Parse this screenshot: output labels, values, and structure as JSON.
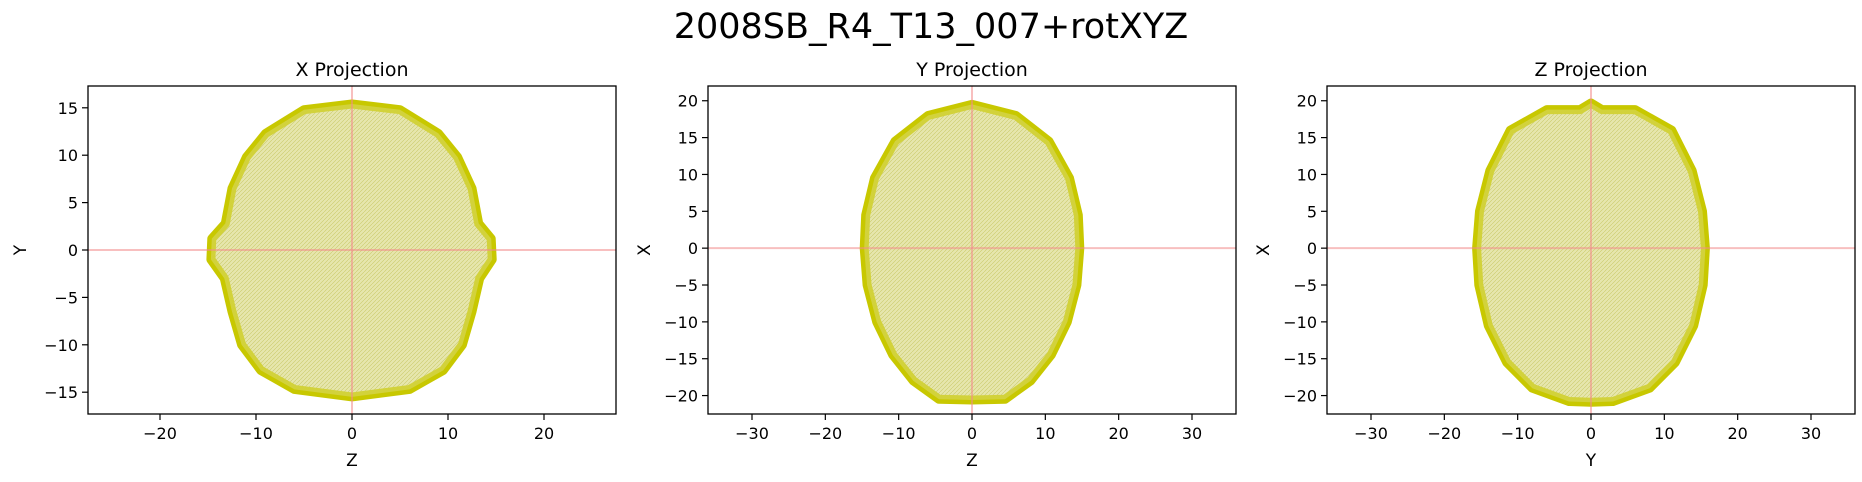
{
  "figure": {
    "suptitle": "2008SB_R4_T13_007+rotXYZ",
    "colors": {
      "shape": "#c8c800",
      "shape_fill": "#e4e4a8",
      "crosshair": "#f28b8b",
      "axes": "#000000"
    }
  },
  "chart_data": [
    {
      "type": "area",
      "title": "X Projection",
      "xlabel": "Z",
      "ylabel": "Y",
      "xlim": [
        -27.5,
        27.5
      ],
      "ylim": [
        -17.3,
        17.3
      ],
      "xticks": [
        -20,
        -10,
        0,
        10,
        20
      ],
      "yticks": [
        -15,
        -10,
        -5,
        0,
        5,
        10,
        15
      ],
      "grid": false,
      "crosshair": [
        0,
        0
      ],
      "series": [
        {
          "x": [
            0,
            5,
            9,
            11,
            12.5,
            13.2,
            14.5,
            14.6,
            13.3,
            12.5,
            11.5,
            9.5,
            6,
            0,
            -6,
            -9.5,
            -11.5,
            -12.5,
            -13.3,
            -14.7,
            -14.6,
            -13.2,
            -12.5,
            -11,
            -9,
            -5,
            0
          ],
          "y": [
            15.4,
            14.8,
            12.3,
            9.8,
            6.5,
            2.8,
            1.2,
            -1,
            -3,
            -6.5,
            -10,
            -12.7,
            -14.7,
            -15.5,
            -14.7,
            -12.7,
            -10,
            -6.5,
            -3,
            -1,
            1.2,
            2.8,
            6.5,
            9.8,
            12.3,
            14.8,
            15.4
          ]
        }
      ]
    },
    {
      "type": "area",
      "title": "Y Projection",
      "xlabel": "Z",
      "ylabel": "X",
      "xlim": [
        -36,
        36
      ],
      "ylim": [
        -22.5,
        22
      ],
      "xticks": [
        -30,
        -20,
        -10,
        0,
        10,
        20,
        30
      ],
      "yticks": [
        -20,
        -15,
        -10,
        -5,
        0,
        5,
        10,
        15,
        20
      ],
      "grid": false,
      "crosshair": [
        0,
        0
      ],
      "series": [
        {
          "x": [
            0,
            6,
            10.5,
            13.3,
            14.5,
            14.7,
            14.3,
            13,
            10.8,
            8,
            4.5,
            0,
            -4.5,
            -8,
            -10.8,
            -13,
            -14.3,
            -14.7,
            -14.5,
            -13.3,
            -10.5,
            -6,
            0
          ],
          "y": [
            19.5,
            18,
            14.5,
            9.5,
            4.5,
            0,
            -5,
            -10,
            -14.5,
            -18,
            -20.5,
            -20.6,
            -20.5,
            -18,
            -14.5,
            -10,
            -5,
            0,
            4.5,
            9.5,
            14.5,
            18,
            19.5
          ]
        }
      ]
    },
    {
      "type": "area",
      "title": "Z Projection",
      "xlabel": "Y",
      "ylabel": "X",
      "xlim": [
        -36,
        36
      ],
      "ylim": [
        -22.5,
        22
      ],
      "xticks": [
        -30,
        -20,
        -10,
        0,
        10,
        20,
        30
      ],
      "yticks": [
        -20,
        -15,
        -10,
        -5,
        0,
        5,
        10,
        15,
        20
      ],
      "grid": false,
      "crosshair": [
        0,
        0
      ],
      "series": [
        {
          "x": [
            0,
            1.5,
            6,
            11,
            13.8,
            15.2,
            15.6,
            15.3,
            14,
            11.5,
            8,
            3,
            0,
            -3,
            -8,
            -11.5,
            -14,
            -15.3,
            -15.6,
            -15.2,
            -13.8,
            -11,
            -6,
            -1.5,
            0
          ],
          "y": [
            19.7,
            18.8,
            18.8,
            16,
            10.5,
            5,
            0,
            -5,
            -10.5,
            -15.5,
            -19,
            -20.8,
            -20.9,
            -20.8,
            -19,
            -15.5,
            -10.5,
            -5,
            0,
            5,
            10.5,
            16,
            18.8,
            18.8,
            19.7
          ]
        }
      ]
    }
  ]
}
